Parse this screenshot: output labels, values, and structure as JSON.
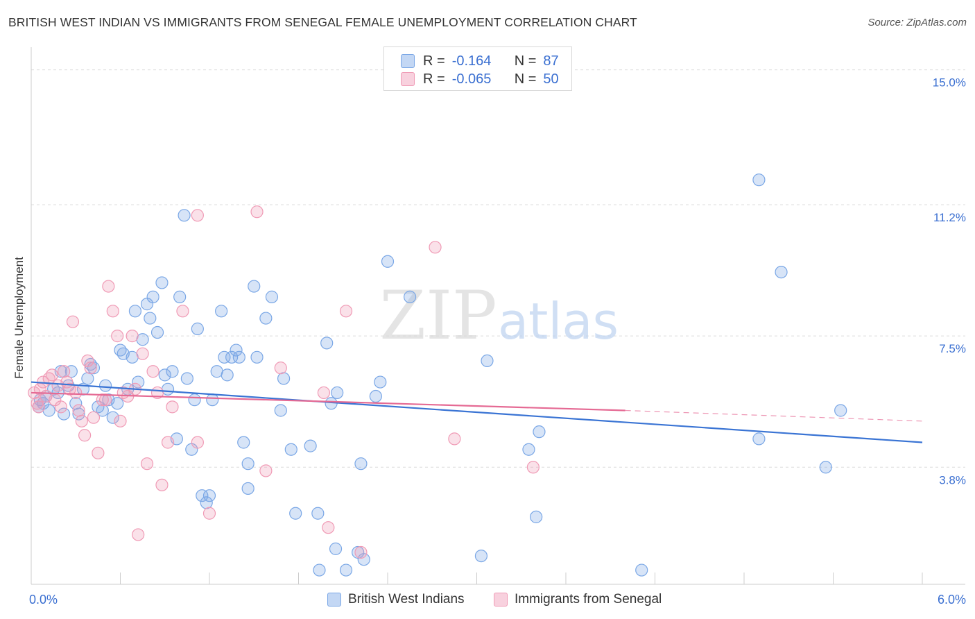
{
  "title": "BRITISH WEST INDIAN VS IMMIGRANTS FROM SENEGAL FEMALE UNEMPLOYMENT CORRELATION CHART",
  "source": "Source: ZipAtlas.com",
  "watermark": {
    "zip": "ZIP",
    "atlas": "atlas"
  },
  "legend": {
    "r_label": "R =",
    "n_label": "N =",
    "rows": [
      {
        "r": "-0.164",
        "n": "87",
        "color": "#7aa7e6"
      },
      {
        "r": "-0.065",
        "n": "50",
        "color": "#f09ab5"
      }
    ]
  },
  "chart_data": {
    "type": "scatter",
    "ylabel": "Female Unemployment",
    "xlim": [
      0,
      6.0
    ],
    "ylim": [
      0.5,
      15.6
    ],
    "x_tick_labels": [
      "0.0%",
      "6.0%"
    ],
    "y_ticks": [
      3.8,
      7.5,
      11.2,
      15.0
    ],
    "y_tick_labels": [
      "3.8%",
      "7.5%",
      "11.2%",
      "15.0%"
    ],
    "grid": true,
    "legend_position": "top-center",
    "series": [
      {
        "name": "British West Indians",
        "color": "#7aa7e6",
        "line_color": "#3a74d4",
        "trend": {
          "x": [
            0.0,
            6.0
          ],
          "y": [
            6.2,
            4.5
          ]
        },
        "points": [
          [
            0.05,
            5.5
          ],
          [
            0.06,
            5.7
          ],
          [
            0.08,
            5.6
          ],
          [
            0.1,
            5.8
          ],
          [
            0.12,
            5.4
          ],
          [
            0.15,
            6.0
          ],
          [
            0.18,
            5.9
          ],
          [
            0.2,
            6.5
          ],
          [
            0.22,
            5.3
          ],
          [
            0.25,
            6.1
          ],
          [
            0.27,
            6.5
          ],
          [
            0.3,
            5.6
          ],
          [
            0.32,
            5.3
          ],
          [
            0.35,
            6.0
          ],
          [
            0.38,
            6.3
          ],
          [
            0.4,
            6.7
          ],
          [
            0.42,
            6.6
          ],
          [
            0.45,
            5.5
          ],
          [
            0.48,
            5.4
          ],
          [
            0.5,
            6.1
          ],
          [
            0.52,
            5.7
          ],
          [
            0.55,
            5.2
          ],
          [
            0.58,
            5.6
          ],
          [
            0.6,
            7.1
          ],
          [
            0.62,
            7.0
          ],
          [
            0.65,
            6.0
          ],
          [
            0.68,
            6.9
          ],
          [
            0.7,
            8.2
          ],
          [
            0.72,
            6.2
          ],
          [
            0.75,
            7.4
          ],
          [
            0.78,
            8.4
          ],
          [
            0.8,
            8.0
          ],
          [
            0.82,
            8.6
          ],
          [
            0.85,
            7.6
          ],
          [
            0.88,
            9.0
          ],
          [
            0.9,
            6.4
          ],
          [
            0.92,
            6.0
          ],
          [
            0.95,
            6.5
          ],
          [
            0.98,
            4.6
          ],
          [
            1.0,
            8.6
          ],
          [
            1.03,
            10.9
          ],
          [
            1.05,
            6.3
          ],
          [
            1.08,
            4.3
          ],
          [
            1.1,
            5.7
          ],
          [
            1.12,
            7.7
          ],
          [
            1.15,
            3.0
          ],
          [
            1.18,
            2.8
          ],
          [
            1.2,
            3.0
          ],
          [
            1.22,
            5.7
          ],
          [
            1.25,
            6.5
          ],
          [
            1.28,
            8.2
          ],
          [
            1.3,
            6.9
          ],
          [
            1.32,
            6.4
          ],
          [
            1.35,
            6.9
          ],
          [
            1.38,
            7.1
          ],
          [
            1.4,
            6.9
          ],
          [
            1.43,
            4.5
          ],
          [
            1.46,
            3.9
          ],
          [
            1.46,
            3.2
          ],
          [
            1.5,
            8.9
          ],
          [
            1.52,
            6.9
          ],
          [
            1.58,
            8.0
          ],
          [
            1.62,
            8.6
          ],
          [
            1.68,
            5.4
          ],
          [
            1.7,
            6.3
          ],
          [
            1.75,
            4.3
          ],
          [
            1.78,
            2.5
          ],
          [
            1.88,
            4.4
          ],
          [
            1.93,
            2.5
          ],
          [
            1.94,
            0.9
          ],
          [
            1.99,
            7.3
          ],
          [
            2.02,
            5.6
          ],
          [
            2.05,
            1.5
          ],
          [
            2.06,
            5.9
          ],
          [
            2.12,
            0.9
          ],
          [
            2.2,
            1.4
          ],
          [
            2.22,
            3.9
          ],
          [
            2.24,
            1.2
          ],
          [
            2.32,
            5.8
          ],
          [
            2.35,
            6.2
          ],
          [
            2.4,
            9.6
          ],
          [
            2.55,
            8.6
          ],
          [
            3.03,
            1.3
          ],
          [
            3.07,
            6.8
          ],
          [
            3.35,
            4.3
          ],
          [
            3.4,
            2.4
          ],
          [
            3.42,
            4.8
          ],
          [
            4.11,
            0.9
          ],
          [
            4.9,
            11.9
          ],
          [
            4.9,
            4.6
          ],
          [
            5.05,
            9.3
          ],
          [
            5.35,
            3.8
          ],
          [
            5.45,
            5.4
          ]
        ]
      },
      {
        "name": "Immigrants from Senegal",
        "color": "#f09ab5",
        "line_color": "#e56a94",
        "trend": {
          "x": [
            0.0,
            4.0
          ],
          "y": [
            5.9,
            5.4
          ]
        },
        "trend_dashed": {
          "x": [
            4.0,
            6.0
          ],
          "y": [
            5.4,
            5.1
          ]
        },
        "points": [
          [
            0.02,
            5.9
          ],
          [
            0.04,
            5.6
          ],
          [
            0.05,
            5.5
          ],
          [
            0.06,
            6.0
          ],
          [
            0.08,
            6.2
          ],
          [
            0.1,
            5.8
          ],
          [
            0.12,
            6.3
          ],
          [
            0.14,
            6.4
          ],
          [
            0.16,
            5.7
          ],
          [
            0.18,
            6.1
          ],
          [
            0.2,
            5.5
          ],
          [
            0.22,
            6.5
          ],
          [
            0.24,
            6.2
          ],
          [
            0.26,
            6.0
          ],
          [
            0.28,
            7.9
          ],
          [
            0.3,
            5.9
          ],
          [
            0.32,
            5.4
          ],
          [
            0.34,
            5.1
          ],
          [
            0.36,
            4.7
          ],
          [
            0.38,
            6.8
          ],
          [
            0.4,
            6.6
          ],
          [
            0.42,
            5.2
          ],
          [
            0.45,
            4.2
          ],
          [
            0.48,
            5.7
          ],
          [
            0.5,
            5.7
          ],
          [
            0.52,
            8.9
          ],
          [
            0.55,
            8.2
          ],
          [
            0.58,
            7.5
          ],
          [
            0.6,
            5.1
          ],
          [
            0.62,
            5.9
          ],
          [
            0.65,
            5.8
          ],
          [
            0.68,
            7.5
          ],
          [
            0.7,
            6.0
          ],
          [
            0.72,
            1.9
          ],
          [
            0.75,
            7.0
          ],
          [
            0.78,
            3.9
          ],
          [
            0.82,
            6.5
          ],
          [
            0.85,
            5.9
          ],
          [
            0.88,
            3.3
          ],
          [
            0.92,
            4.5
          ],
          [
            0.95,
            5.5
          ],
          [
            1.02,
            8.2
          ],
          [
            1.12,
            10.9
          ],
          [
            1.12,
            4.5
          ],
          [
            1.2,
            2.5
          ],
          [
            1.52,
            11.0
          ],
          [
            1.58,
            3.7
          ],
          [
            1.68,
            6.6
          ],
          [
            1.97,
            5.9
          ],
          [
            2.0,
            2.1
          ],
          [
            2.12,
            8.2
          ],
          [
            2.22,
            1.4
          ],
          [
            2.72,
            10.0
          ],
          [
            2.85,
            4.6
          ],
          [
            3.38,
            3.8
          ]
        ]
      }
    ]
  },
  "bottom_legend": [
    "British West Indians",
    "Immigrants from Senegal"
  ]
}
